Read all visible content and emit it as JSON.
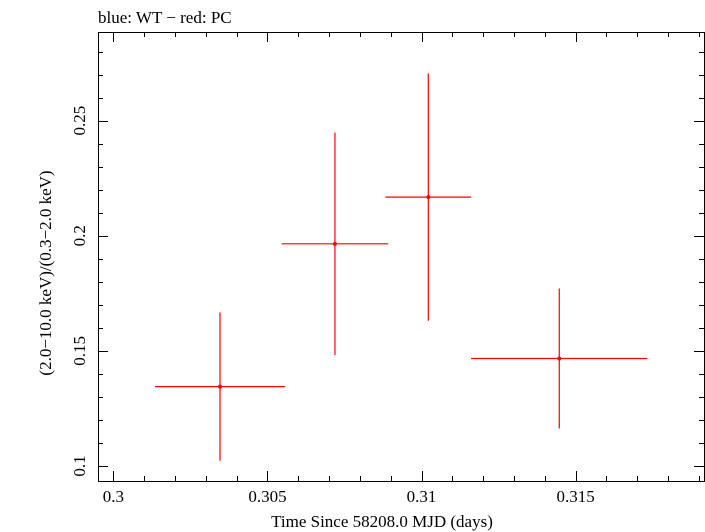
{
  "chart_data": {
    "type": "scatter",
    "title": "blue: WT − red: PC",
    "xlabel": "Time Since 58208.0 MJD (days)",
    "ylabel": "(2.0−10.0 keV)/(0.3−2.0 keV)",
    "xlim": [
      0.2995,
      0.3192
    ],
    "ylim": [
      0.0935,
      0.2885
    ],
    "x_ticks": [
      {
        "value": 0.3,
        "label": "0.3"
      },
      {
        "value": 0.305,
        "label": "0.305"
      },
      {
        "value": 0.31,
        "label": "0.31"
      },
      {
        "value": 0.315,
        "label": "0.315"
      }
    ],
    "x_minor_step": 0.001,
    "y_ticks": [
      {
        "value": 0.1,
        "label": "0.1"
      },
      {
        "value": 0.15,
        "label": "0.15"
      },
      {
        "value": 0.2,
        "label": "0.2"
      },
      {
        "value": 0.25,
        "label": "0.25"
      }
    ],
    "y_minor_step": 0.01,
    "grid": false,
    "series": [
      {
        "name": "PC",
        "color": "#ff0000",
        "points": [
          {
            "x": 0.30346,
            "y": 0.1345,
            "x_err_minus": 0.00211,
            "x_err_plus": 0.00211,
            "y_err_minus": 0.0322,
            "y_err_plus": 0.0322
          },
          {
            "x": 0.30719,
            "y": 0.1965,
            "x_err_minus": 0.00173,
            "x_err_plus": 0.00173,
            "y_err_minus": 0.0483,
            "y_err_plus": 0.0483
          },
          {
            "x": 0.31022,
            "y": 0.2168,
            "x_err_minus": 0.00139,
            "x_err_plus": 0.00139,
            "y_err_minus": 0.0537,
            "y_err_plus": 0.0537
          },
          {
            "x": 0.31447,
            "y": 0.1467,
            "x_err_minus": 0.00286,
            "x_err_plus": 0.00286,
            "y_err_minus": 0.0304,
            "y_err_plus": 0.0304
          }
        ]
      }
    ]
  }
}
